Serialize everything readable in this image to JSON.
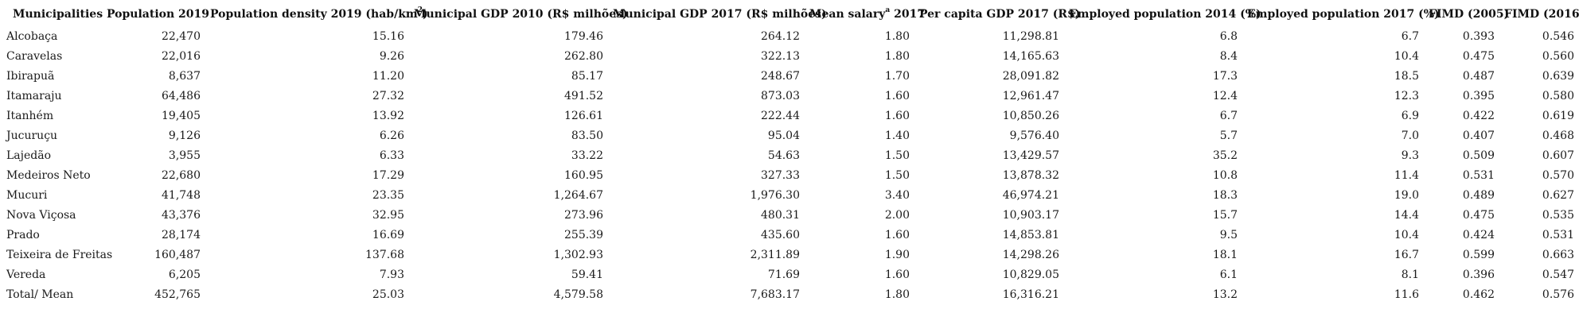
{
  "table": {
    "headers": {
      "municipalities": "Municipalities",
      "population_2019": "Population 2019",
      "density_pre": "Population density 2019 (hab/km",
      "density_sup": "2",
      "density_post": ")",
      "gdp_2010": "Municipal GDP 2010 (R$ milhões)",
      "gdp_2017": "Municipal GDP 2017 (R$ milhões)",
      "mean_salary_pre": "Mean salary",
      "mean_salary_sup": "a",
      "mean_salary_post": " 2017",
      "per_capita_gdp": "Per capita GDP 2017 (R$)",
      "employed_2014": "Employed population 2014 (%)",
      "employed_2017": "Employed population 2017 (%)",
      "fimd_2005": "FIMD (2005)",
      "fimd_2016": "FIMD (2016)"
    },
    "rows": [
      [
        "Alcobaça",
        "22,470",
        "15.16",
        "179.46",
        "264.12",
        "1.80",
        "11,298.81",
        "6.8",
        "6.7",
        "0.393",
        "0.546"
      ],
      [
        "Caravelas",
        "22,016",
        "9.26",
        "262.80",
        "322.13",
        "1.80",
        "14,165.63",
        "8.4",
        "10.4",
        "0.475",
        "0.560"
      ],
      [
        "Ibirapuã",
        "8,637",
        "11.20",
        "85.17",
        "248.67",
        "1.70",
        "28,091.82",
        "17.3",
        "18.5",
        "0.487",
        "0.639"
      ],
      [
        "Itamaraju",
        "64,486",
        "27.32",
        "491.52",
        "873.03",
        "1.60",
        "12,961.47",
        "12.4",
        "12.3",
        "0.395",
        "0.580"
      ],
      [
        "Itanhém",
        "19,405",
        "13.92",
        "126.61",
        "222.44",
        "1.60",
        "10,850.26",
        "6.7",
        "6.9",
        "0.422",
        "0.619"
      ],
      [
        "Jucuruçu",
        "9,126",
        "6.26",
        "83.50",
        "95.04",
        "1.40",
        "9,576.40",
        "5.7",
        "7.0",
        "0.407",
        "0.468"
      ],
      [
        "Lajedão",
        "3,955",
        "6.33",
        "33.22",
        "54.63",
        "1.50",
        "13,429.57",
        "35.2",
        "9.3",
        "0.509",
        "0.607"
      ],
      [
        "Medeiros Neto",
        "22,680",
        "17.29",
        "160.95",
        "327.33",
        "1.50",
        "13,878.32",
        "10.8",
        "11.4",
        "0.531",
        "0.570"
      ],
      [
        "Mucuri",
        "41,748",
        "23.35",
        "1,264.67",
        "1,976.30",
        "3.40",
        "46,974.21",
        "18.3",
        "19.0",
        "0.489",
        "0.627"
      ],
      [
        "Nova Viçosa",
        "43,376",
        "32.95",
        "273.96",
        "480.31",
        "2.00",
        "10,903.17",
        "15.7",
        "14.4",
        "0.475",
        "0.535"
      ],
      [
        "Prado",
        "28,174",
        "16.69",
        "255.39",
        "435.60",
        "1.60",
        "14,853.81",
        "9.5",
        "10.4",
        "0.424",
        "0.531"
      ],
      [
        "Teixeira de Freitas",
        "160,487",
        "137.68",
        "1,302.93",
        "2,311.89",
        "1.90",
        "14,298.26",
        "18.1",
        "16.7",
        "0.599",
        "0.663"
      ],
      [
        "Vereda",
        "6,205",
        "7.93",
        "59.41",
        "71.69",
        "1.60",
        "10,829.05",
        "6.1",
        "8.1",
        "0.396",
        "0.547"
      ],
      [
        "Total/ Mean",
        "452,765",
        "25.03",
        "4,579.58",
        "7,683.17",
        "1.80",
        "16,316.21",
        "13.2",
        "11.6",
        "0.462",
        "0.576"
      ]
    ]
  }
}
